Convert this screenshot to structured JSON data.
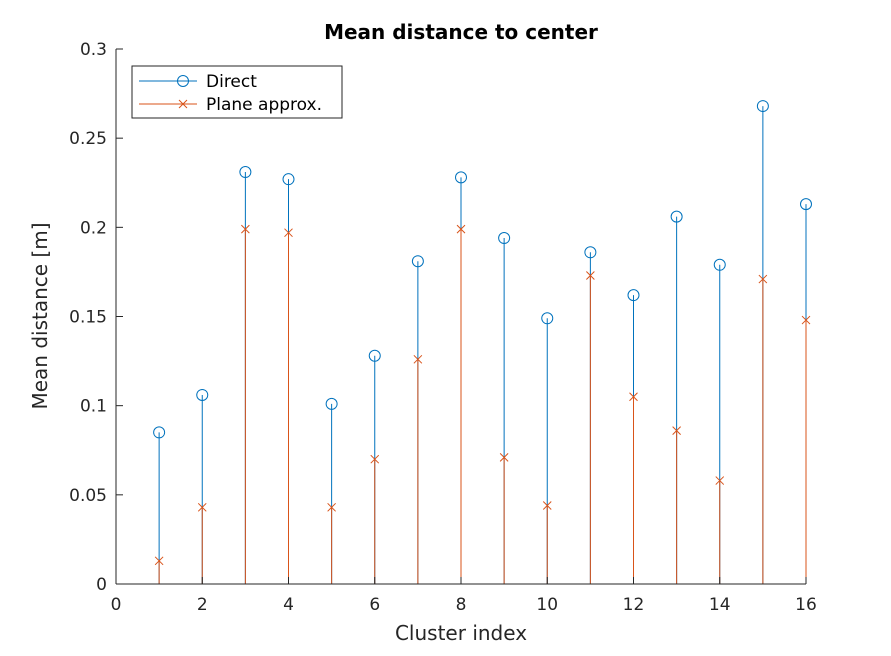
{
  "chart_data": {
    "type": "stem",
    "title": "Mean distance to center",
    "xlabel": "Cluster index",
    "ylabel": "Mean distance [m]",
    "xlim": [
      0,
      16
    ],
    "ylim": [
      0,
      0.3
    ],
    "x_ticks": [
      "0",
      "2",
      "4",
      "6",
      "8",
      "10",
      "12",
      "14",
      "16"
    ],
    "y_ticks": [
      "0",
      "0.05",
      "0.1",
      "0.15",
      "0.2",
      "0.25",
      "0.3"
    ],
    "grid": false,
    "legend_position": "top-left",
    "x": [
      1,
      2,
      3,
      4,
      5,
      6,
      7,
      8,
      9,
      10,
      11,
      12,
      13,
      14,
      15,
      16
    ],
    "series": [
      {
        "name": "Direct",
        "marker": "circle",
        "color": "#0072BD",
        "values": [
          0.085,
          0.106,
          0.231,
          0.227,
          0.101,
          0.128,
          0.181,
          0.228,
          0.194,
          0.149,
          0.186,
          0.162,
          0.206,
          0.179,
          0.268,
          0.213
        ]
      },
      {
        "name": "Plane approx.",
        "marker": "x",
        "color": "#D95319",
        "values": [
          0.013,
          0.043,
          0.199,
          0.197,
          0.043,
          0.07,
          0.126,
          0.199,
          0.071,
          0.044,
          0.173,
          0.105,
          0.086,
          0.058,
          0.171,
          0.148
        ]
      }
    ]
  }
}
